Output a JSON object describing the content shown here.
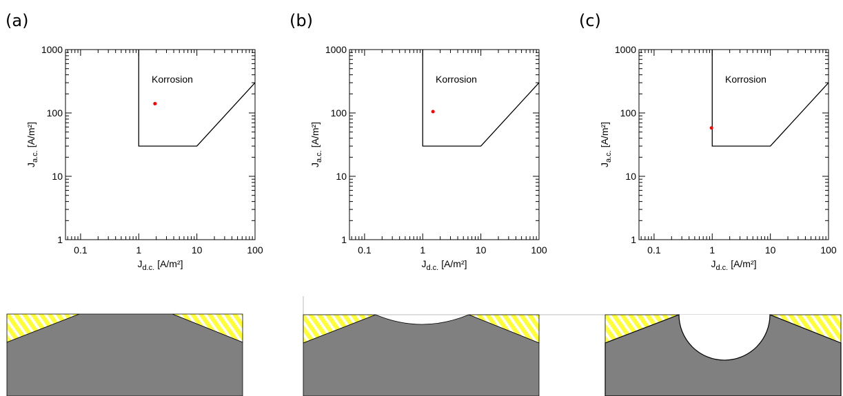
{
  "chart_data": [
    {
      "type": "scatter",
      "panel_label": "(a)",
      "annotation": "Korrosion",
      "xlabel": {
        "symbol": "J",
        "subscript": "d.c.",
        "unit": "[A/m²]"
      },
      "ylabel": {
        "symbol": "J",
        "subscript": "a.c.",
        "unit": "[A/m²]"
      },
      "xscale": "log",
      "yscale": "log",
      "xlim": [
        0.055,
        100
      ],
      "ylim": [
        1,
        1000
      ],
      "xticks": [
        0.1,
        1,
        10,
        100
      ],
      "yticks": [
        1,
        10,
        100,
        1000
      ],
      "series": [
        {
          "type": "line",
          "color": "#000000",
          "x": [
            1,
            1,
            10,
            100
          ],
          "values": [
            1000,
            30,
            30,
            300
          ]
        },
        {
          "type": "scatter",
          "color": "#ff0000",
          "x": [
            1.9
          ],
          "values": [
            140
          ]
        }
      ]
    },
    {
      "type": "scatter",
      "panel_label": "(b)",
      "annotation": "Korrosion",
      "xlabel": {
        "symbol": "J",
        "subscript": "d.c.",
        "unit": "[A/m²]"
      },
      "ylabel": {
        "symbol": "J",
        "subscript": "a.c.",
        "unit": "[A/m²]"
      },
      "xscale": "log",
      "yscale": "log",
      "xlim": [
        0.055,
        100
      ],
      "ylim": [
        1,
        1000
      ],
      "xticks": [
        0.1,
        1,
        10,
        100
      ],
      "yticks": [
        1,
        10,
        100,
        1000
      ],
      "series": [
        {
          "type": "line",
          "color": "#000000",
          "x": [
            1,
            1,
            10,
            100
          ],
          "values": [
            1000,
            30,
            30,
            300
          ]
        },
        {
          "type": "scatter",
          "color": "#ff0000",
          "x": [
            1.5
          ],
          "values": [
            105
          ]
        }
      ]
    },
    {
      "type": "scatter",
      "panel_label": "(c)",
      "annotation": "Korrosion",
      "xlabel": {
        "symbol": "J",
        "subscript": "d.c.",
        "unit": "[A/m²]"
      },
      "ylabel": {
        "symbol": "J",
        "subscript": "a.c.",
        "unit": "[A/m²]"
      },
      "xscale": "log",
      "yscale": "log",
      "xlim": [
        0.055,
        100
      ],
      "ylim": [
        1,
        1000
      ],
      "xticks": [
        0.1,
        1,
        10,
        100
      ],
      "yticks": [
        1,
        10,
        100,
        1000
      ],
      "series": [
        {
          "type": "line",
          "color": "#000000",
          "x": [
            1,
            1,
            10,
            100
          ],
          "values": [
            1000,
            30,
            30,
            300
          ]
        },
        {
          "type": "scatter",
          "color": "#ff0000",
          "x": [
            0.97
          ],
          "values": [
            58
          ]
        }
      ]
    }
  ]
}
